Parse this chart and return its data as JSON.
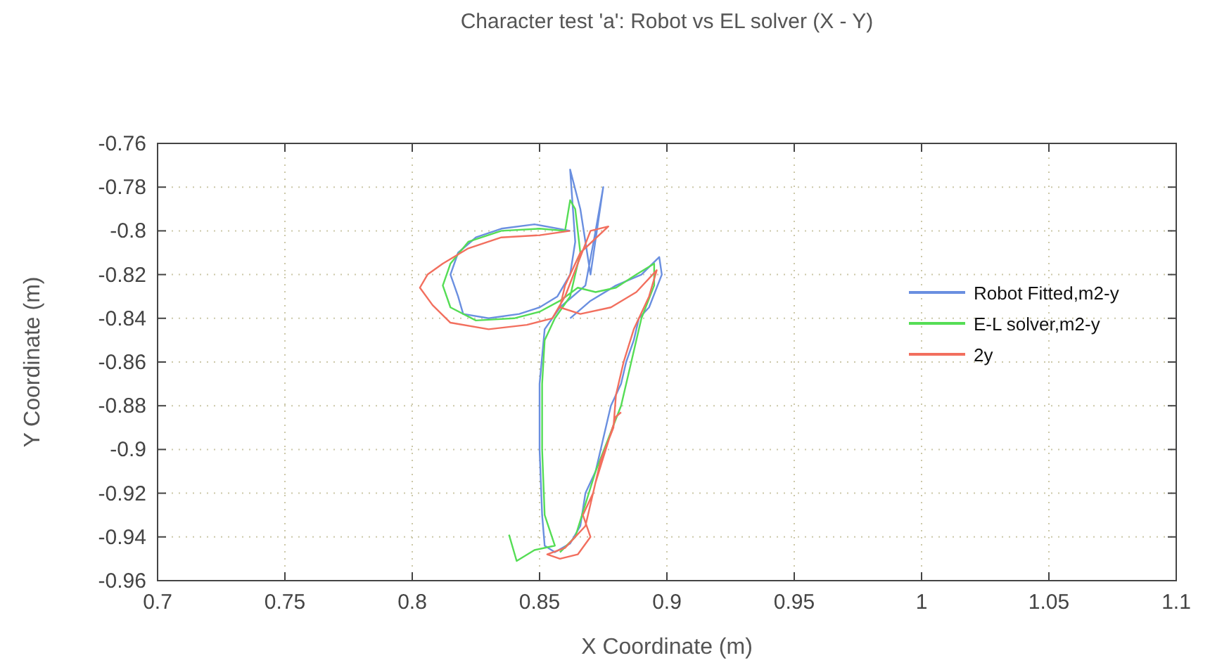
{
  "chart_data": {
    "type": "line",
    "title": "Character test 'a': Robot vs EL solver (X - Y)",
    "xlabel": "X Coordinate (m)",
    "ylabel": "Y Coordinate (m)",
    "xlim": [
      0.7,
      1.1
    ],
    "xticks": [
      0.7,
      0.75,
      0.8,
      0.85,
      0.9,
      0.95,
      1,
      1.05,
      1.1
    ],
    "ylim": [
      -0.96,
      -0.76
    ],
    "yticks": [
      -0.96,
      -0.94,
      -0.92,
      -0.9,
      -0.88,
      -0.86,
      -0.84,
      -0.82,
      -0.8,
      -0.78,
      -0.76
    ],
    "grid": true,
    "legend": "right",
    "marker": "none",
    "line_style": "solid",
    "series": [
      {
        "name": "Robot Fitted,m2-y",
        "color": "#6a8fe0",
        "x": [
          0.862,
          0.848,
          0.835,
          0.825,
          0.818,
          0.815,
          0.818,
          0.82,
          0.83,
          0.842,
          0.85,
          0.857,
          0.862,
          0.864,
          0.862,
          0.866,
          0.87,
          0.875,
          0.872,
          0.868,
          0.858,
          0.852,
          0.85,
          0.85,
          0.851,
          0.852,
          0.856,
          0.862,
          0.866,
          0.868,
          0.872,
          0.875,
          0.878,
          0.882,
          0.884,
          0.887,
          0.889,
          0.893,
          0.898,
          0.897,
          0.89,
          0.88,
          0.87,
          0.862
        ],
        "values": [
          -0.8,
          -0.797,
          -0.799,
          -0.803,
          -0.81,
          -0.82,
          -0.83,
          -0.838,
          -0.84,
          -0.838,
          -0.835,
          -0.83,
          -0.82,
          -0.805,
          -0.772,
          -0.79,
          -0.82,
          -0.78,
          -0.8,
          -0.825,
          -0.835,
          -0.845,
          -0.87,
          -0.9,
          -0.93,
          -0.944,
          -0.947,
          -0.943,
          -0.935,
          -0.92,
          -0.91,
          -0.895,
          -0.88,
          -0.87,
          -0.86,
          -0.85,
          -0.84,
          -0.835,
          -0.82,
          -0.812,
          -0.82,
          -0.825,
          -0.832,
          -0.84
        ]
      },
      {
        "name": "E-L solver,m2-y",
        "color": "#55dd55",
        "x": [
          0.838,
          0.841,
          0.848,
          0.856,
          0.852,
          0.851,
          0.851,
          0.852,
          0.856,
          0.862,
          0.866,
          0.864,
          0.862,
          0.86,
          0.85,
          0.835,
          0.822,
          0.815,
          0.812,
          0.815,
          0.825,
          0.84,
          0.85,
          0.858,
          0.865,
          0.872,
          0.88,
          0.888,
          0.895,
          0.895,
          0.89,
          0.886,
          0.882,
          0.877,
          0.872,
          0.868,
          0.864,
          0.858
        ],
        "values": [
          -0.939,
          -0.951,
          -0.946,
          -0.944,
          -0.93,
          -0.9,
          -0.87,
          -0.85,
          -0.84,
          -0.83,
          -0.81,
          -0.79,
          -0.786,
          -0.8,
          -0.799,
          -0.8,
          -0.805,
          -0.815,
          -0.825,
          -0.835,
          -0.841,
          -0.84,
          -0.837,
          -0.832,
          -0.826,
          -0.828,
          -0.826,
          -0.82,
          -0.815,
          -0.825,
          -0.84,
          -0.86,
          -0.88,
          -0.895,
          -0.91,
          -0.925,
          -0.94,
          -0.947
        ]
      },
      {
        "name": "2y",
        "color": "#f26f5e",
        "x": [
          0.862,
          0.85,
          0.835,
          0.822,
          0.812,
          0.806,
          0.803,
          0.808,
          0.815,
          0.83,
          0.845,
          0.855,
          0.86,
          0.865,
          0.87,
          0.877,
          0.866,
          0.86,
          0.858,
          0.866,
          0.878,
          0.888,
          0.896,
          0.893,
          0.887,
          0.883,
          0.88,
          0.879,
          0.874,
          0.871,
          0.867,
          0.87,
          0.865,
          0.858,
          0.853,
          0.86,
          0.868,
          0.872,
          0.876,
          0.88,
          0.882
        ],
        "values": [
          -0.8,
          -0.802,
          -0.803,
          -0.808,
          -0.815,
          -0.82,
          -0.826,
          -0.834,
          -0.842,
          -0.845,
          -0.843,
          -0.84,
          -0.83,
          -0.815,
          -0.8,
          -0.798,
          -0.81,
          -0.825,
          -0.835,
          -0.838,
          -0.835,
          -0.828,
          -0.818,
          -0.83,
          -0.845,
          -0.86,
          -0.875,
          -0.89,
          -0.905,
          -0.92,
          -0.93,
          -0.94,
          -0.948,
          -0.95,
          -0.948,
          -0.945,
          -0.935,
          -0.915,
          -0.9,
          -0.885,
          -0.883
        ]
      }
    ]
  }
}
